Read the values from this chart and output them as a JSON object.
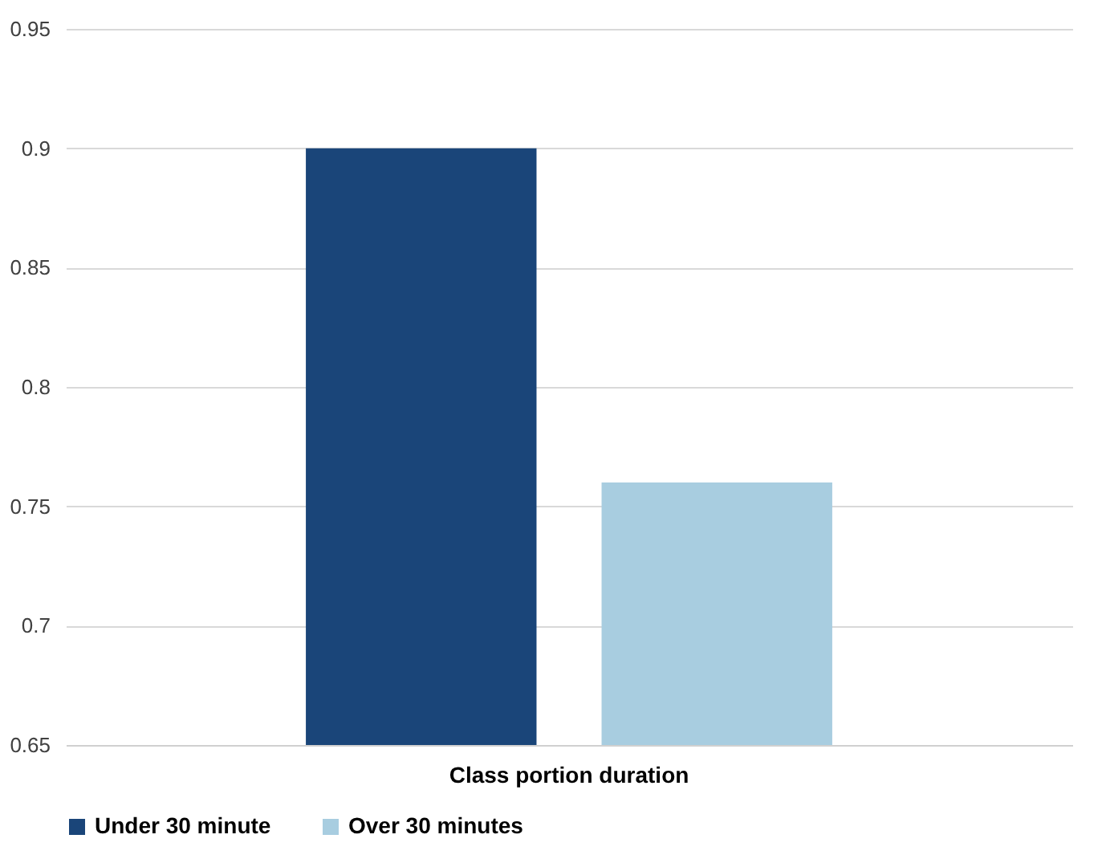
{
  "chart_data": {
    "type": "bar",
    "categories": [
      "Class portion duration"
    ],
    "series": [
      {
        "name": "Under 30 minute",
        "color": "#1a4579",
        "values": [
          0.9
        ]
      },
      {
        "name": "Over 30 minutes",
        "color": "#a8cde0",
        "values": [
          0.76
        ]
      }
    ],
    "ylim": [
      0.65,
      0.95
    ],
    "yticks": [
      0.65,
      0.7,
      0.75,
      0.8,
      0.85,
      0.9,
      0.95
    ],
    "grid": "y",
    "legend": "bottom"
  }
}
